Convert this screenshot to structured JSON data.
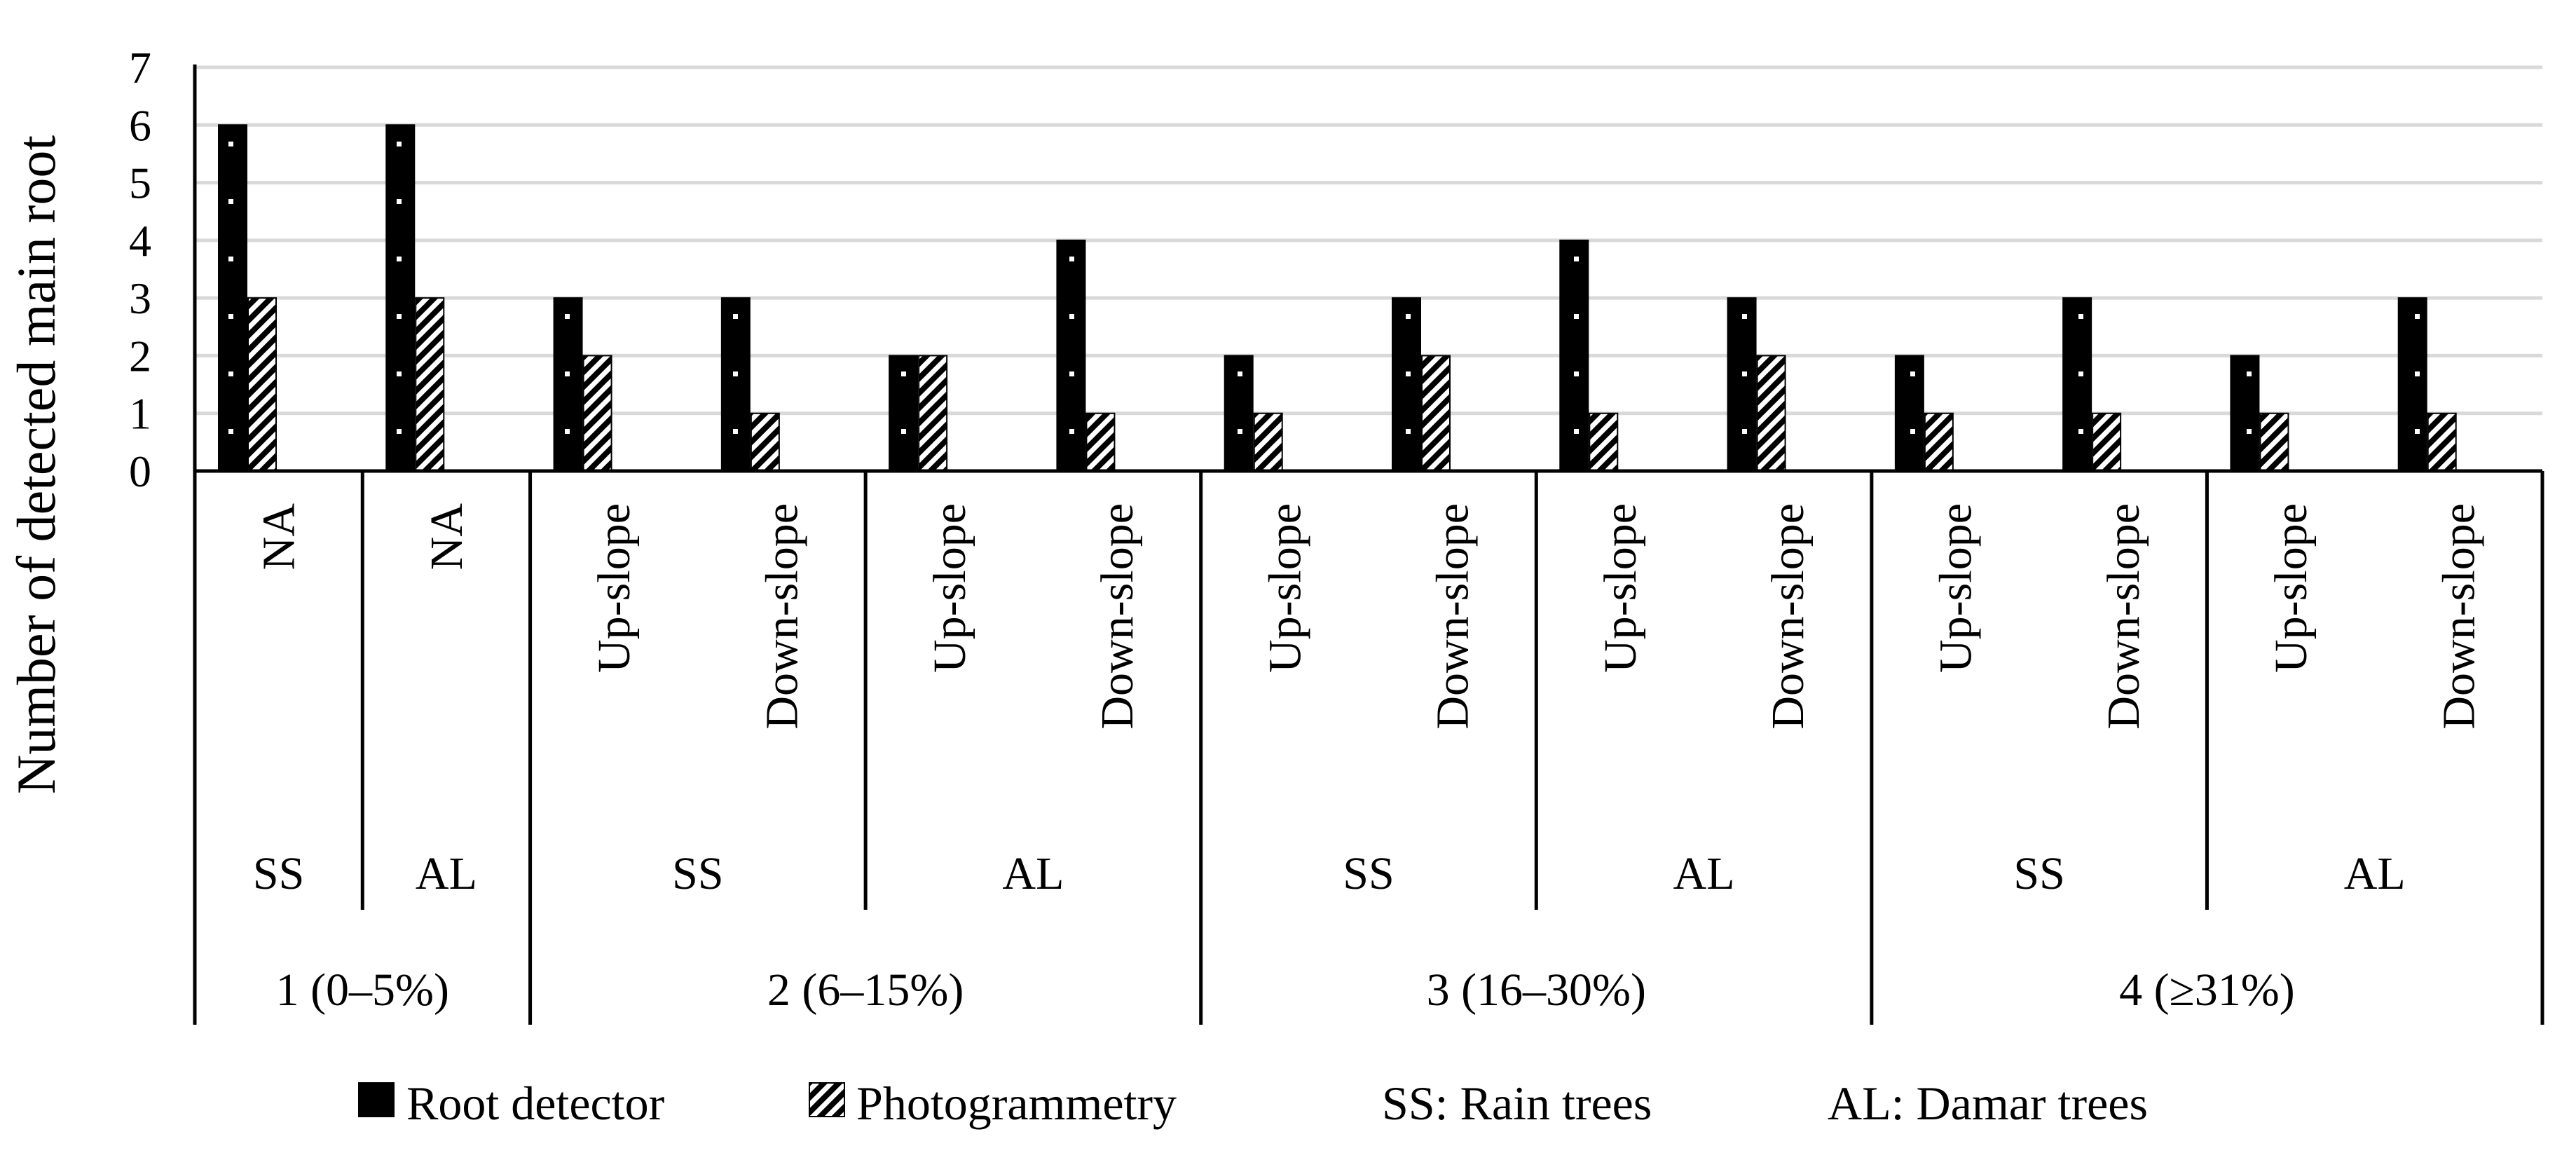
{
  "chart_data": {
    "type": "bar",
    "title": "",
    "ylabel": "Number of detected main root",
    "xlabel": "",
    "ylim": [
      0,
      7
    ],
    "yticks": [
      "0",
      "1",
      "2",
      "3",
      "4",
      "5",
      "6",
      "7"
    ],
    "grid": true,
    "legend_position": "bottom",
    "categories": [
      {
        "slope_class": "1 (0–5%)",
        "species": "SS",
        "position": "NA"
      },
      {
        "slope_class": "1 (0–5%)",
        "species": "AL",
        "position": "NA"
      },
      {
        "slope_class": "2 (6–15%)",
        "species": "SS",
        "position": "Up-slope"
      },
      {
        "slope_class": "2 (6–15%)",
        "species": "SS",
        "position": "Down-slope"
      },
      {
        "slope_class": "2 (6–15%)",
        "species": "AL",
        "position": "Up-slope"
      },
      {
        "slope_class": "2 (6–15%)",
        "species": "AL",
        "position": "Down-slope"
      },
      {
        "slope_class": "3 (16–30%)",
        "species": "SS",
        "position": "Up-slope"
      },
      {
        "slope_class": "3 (16–30%)",
        "species": "SS",
        "position": "Down-slope"
      },
      {
        "slope_class": "3 (16–30%)",
        "species": "AL",
        "position": "Up-slope"
      },
      {
        "slope_class": "3 (16–30%)",
        "species": "AL",
        "position": "Down-slope"
      },
      {
        "slope_class": "4 (≥31%)",
        "species": "SS",
        "position": "Up-slope"
      },
      {
        "slope_class": "4 (≥31%)",
        "species": "SS",
        "position": "Down-slope"
      },
      {
        "slope_class": "4 (≥31%)",
        "species": "AL",
        "position": "Up-slope"
      },
      {
        "slope_class": "4 (≥31%)",
        "species": "AL",
        "position": "Down-slope"
      }
    ],
    "series": [
      {
        "name": "Root detector",
        "pattern": "dotted-black",
        "values": [
          6,
          6,
          3,
          3,
          2,
          4,
          2,
          3,
          4,
          3,
          2,
          3,
          2,
          3
        ]
      },
      {
        "name": "Photogrammetry",
        "pattern": "diagonal-hatch",
        "values": [
          3,
          3,
          2,
          1,
          2,
          1,
          1,
          2,
          1,
          2,
          1,
          1,
          1,
          1
        ]
      }
    ],
    "legend": {
      "series": [
        "Root detector",
        "Photogrammetry"
      ],
      "notes": [
        "SS: Rain trees",
        "AL: Damar trees"
      ]
    },
    "colors": {
      "bar": "#000000",
      "grid": "#d9d9d9",
      "axis": "#000000"
    }
  }
}
